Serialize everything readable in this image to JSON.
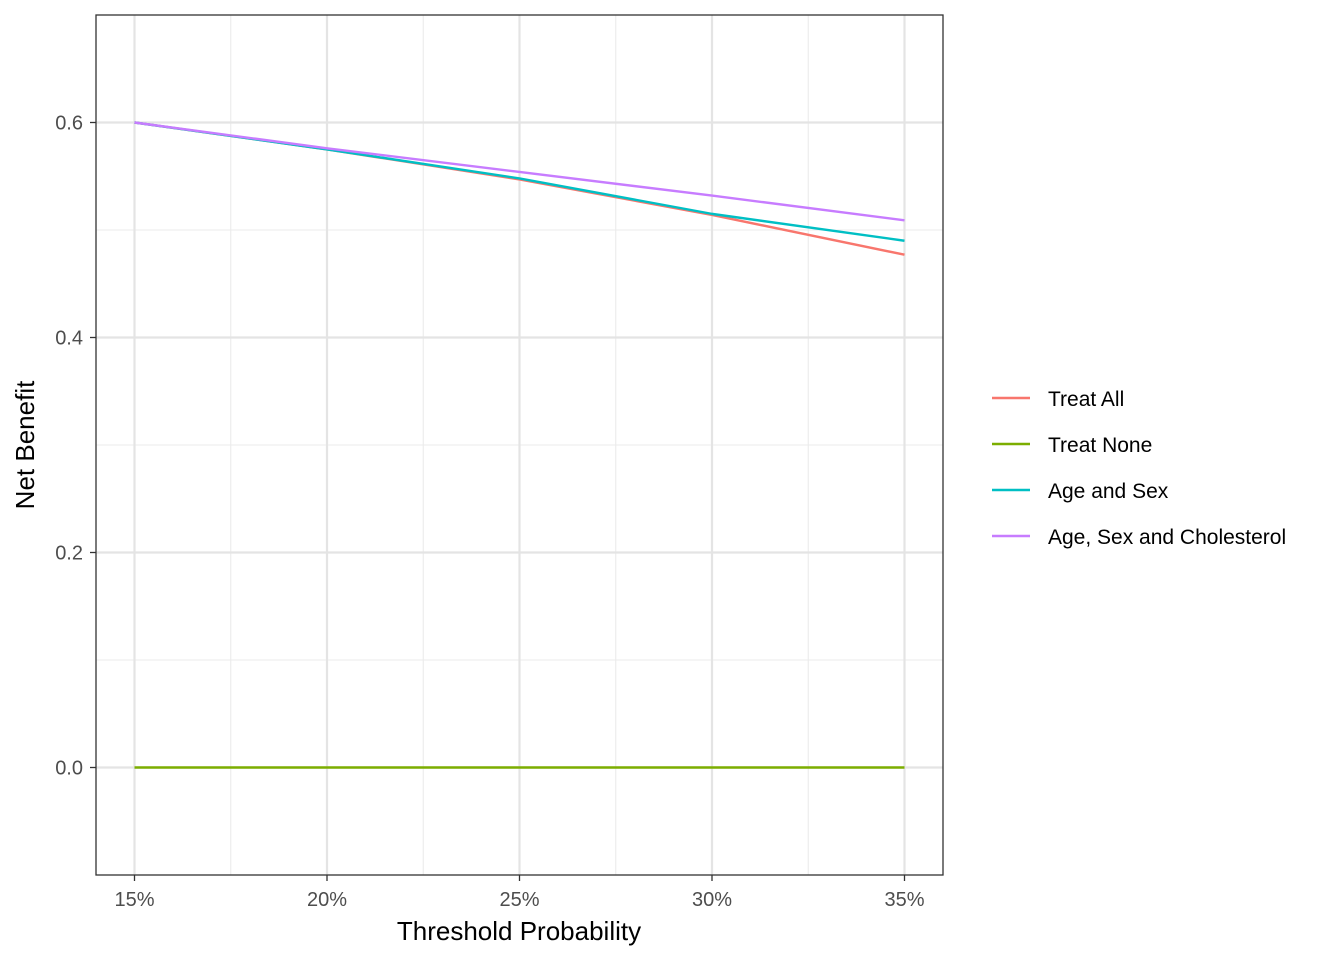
{
  "chart_data": {
    "type": "line",
    "xlabel": "Threshold Probability",
    "ylabel": "Net Benefit",
    "xlim": [
      0.14,
      0.36
    ],
    "ylim": [
      -0.1,
      0.7
    ],
    "x_ticks": [
      0.15,
      0.2,
      0.25,
      0.3,
      0.35
    ],
    "x_tick_labels": [
      "15%",
      "20%",
      "25%",
      "30%",
      "35%"
    ],
    "y_ticks": [
      0.0,
      0.2,
      0.4,
      0.6
    ],
    "y_tick_labels": [
      "0.0",
      "0.2",
      "0.4",
      "0.6"
    ],
    "grid": true,
    "legend_position": "right",
    "series": [
      {
        "name": "Treat All",
        "color": "#F8766D",
        "x": [
          0.15,
          0.2,
          0.25,
          0.3,
          0.35
        ],
        "y": [
          0.6,
          0.575,
          0.547,
          0.514,
          0.477
        ]
      },
      {
        "name": "Treat None",
        "color": "#7CAE00",
        "x": [
          0.15,
          0.2,
          0.25,
          0.3,
          0.35
        ],
        "y": [
          0.0,
          0.0,
          0.0,
          0.0,
          0.0
        ]
      },
      {
        "name": "Age and Sex",
        "color": "#00BFC4",
        "x": [
          0.15,
          0.2,
          0.25,
          0.3,
          0.35
        ],
        "y": [
          0.6,
          0.575,
          0.548,
          0.515,
          0.49
        ]
      },
      {
        "name": "Age, Sex and Cholesterol",
        "color": "#C77CFF",
        "x": [
          0.15,
          0.2,
          0.25,
          0.3,
          0.35
        ],
        "y": [
          0.6,
          0.576,
          0.554,
          0.532,
          0.509
        ]
      }
    ]
  }
}
